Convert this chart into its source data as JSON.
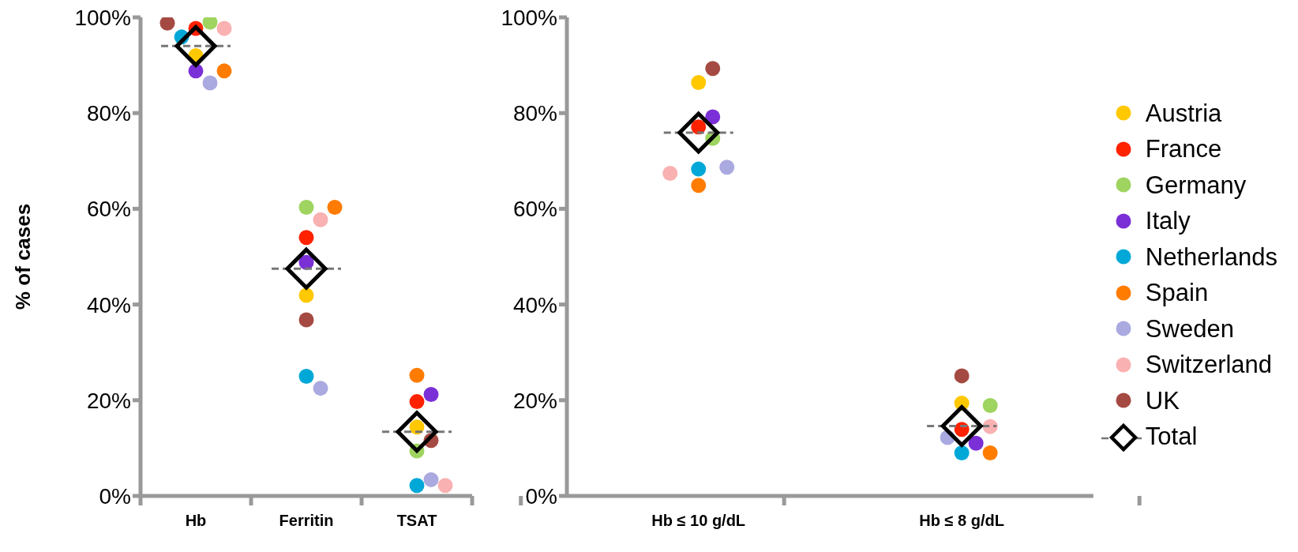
{
  "chart_data": [
    {
      "type": "scatter",
      "ylabel": "% of cases",
      "categories": [
        "Hb",
        "Ferritin",
        "TSAT"
      ],
      "ylim": [
        0,
        100
      ],
      "yticks": [
        {
          "value": 0,
          "label": "0%"
        },
        {
          "value": 20,
          "label": "20%"
        },
        {
          "value": 40,
          "label": "40%"
        },
        {
          "value": 60,
          "label": "60%"
        },
        {
          "value": 80,
          "label": "80%"
        },
        {
          "value": 100,
          "label": "100%"
        }
      ],
      "grid": false,
      "legend": false,
      "marker": "circle",
      "series": [
        {
          "color": "#ffc800",
          "values": [
            92.0,
            41.9,
            14.4
          ]
        },
        {
          "color": "#ff2200",
          "values": [
            97.7,
            54.0,
            19.7
          ]
        },
        {
          "color": "#9ed45f",
          "values": [
            99.0,
            60.3,
            9.4
          ]
        },
        {
          "color": "#7b2fd6",
          "values": [
            88.8,
            48.8,
            21.2
          ]
        },
        {
          "color": "#00a8d8",
          "values": [
            95.9,
            25.0,
            2.2
          ]
        },
        {
          "color": "#ff7c00",
          "values": [
            88.8,
            60.3,
            25.2
          ]
        },
        {
          "color": "#aaa9e0",
          "values": [
            86.3,
            22.5,
            3.4
          ]
        },
        {
          "color": "#f9b1b1",
          "values": [
            97.7,
            57.7,
            2.2
          ]
        },
        {
          "color": "#a54a42",
          "values": [
            98.8,
            36.8,
            11.6
          ]
        },
        {
          "color": "#000000",
          "marker": "diamond",
          "line_style": "dashed",
          "values": [
            94.0,
            47.5,
            13.4
          ]
        }
      ]
    },
    {
      "type": "scatter",
      "categories": [
        "Hb ≤ 10 g/dL",
        "Hb ≤ 8 g/dL"
      ],
      "ylim": [
        0,
        100
      ],
      "yticks": [
        {
          "value": 0,
          "label": "0%"
        },
        {
          "value": 20,
          "label": "20%"
        },
        {
          "value": 40,
          "label": "40%"
        },
        {
          "value": 60,
          "label": "60%"
        },
        {
          "value": 80,
          "label": "80%"
        },
        {
          "value": 100,
          "label": "100%"
        }
      ],
      "grid": false,
      "legend": "right",
      "marker": "circle",
      "series": [
        {
          "name": "Austria",
          "color": "#ffc800",
          "values": [
            86.4,
            19.4
          ]
        },
        {
          "name": "France",
          "color": "#ff2200",
          "values": [
            77.1,
            13.9
          ]
        },
        {
          "name": "Germany",
          "color": "#9ed45f",
          "values": [
            74.7,
            18.9
          ]
        },
        {
          "name": "Italy",
          "color": "#7b2fd6",
          "values": [
            79.2,
            11.0
          ]
        },
        {
          "name": "Netherlands",
          "color": "#00a8d8",
          "values": [
            68.3,
            9.0
          ]
        },
        {
          "name": "Spain",
          "color": "#ff7c00",
          "values": [
            64.9,
            9.0
          ]
        },
        {
          "name": "Sweden",
          "color": "#aaa9e0",
          "values": [
            68.7,
            12.2
          ]
        },
        {
          "name": "Switzerland",
          "color": "#f9b1b1",
          "values": [
            67.4,
            14.5
          ]
        },
        {
          "name": "UK",
          "color": "#a54a42",
          "values": [
            89.3,
            25.1
          ]
        },
        {
          "name": "Total",
          "color": "#000000",
          "marker": "diamond",
          "line_style": "dashed",
          "values": [
            75.9,
            14.6
          ]
        }
      ]
    }
  ]
}
